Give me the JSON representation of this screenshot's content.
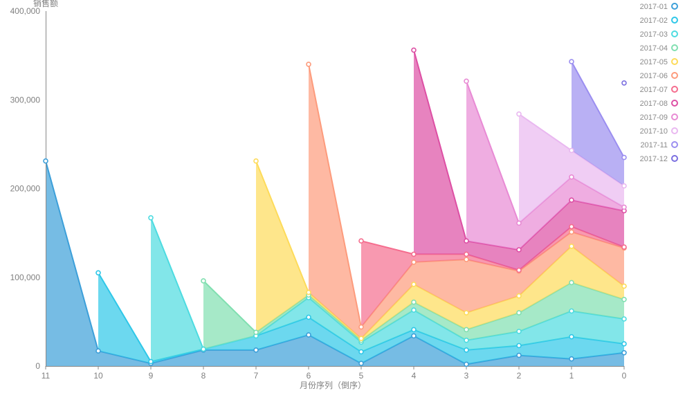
{
  "chart_data": {
    "type": "area",
    "stacked": true,
    "ylabel": "销售额",
    "xlabel": "月份序列（倒序）",
    "ylim": [
      0,
      400000
    ],
    "yticks": [
      "0",
      "100,000",
      "200,000",
      "300,000",
      "400,000"
    ],
    "yticks_values": [
      0,
      100000,
      200000,
      300000,
      400000
    ],
    "categories": [
      "11",
      "10",
      "9",
      "8",
      "7",
      "6",
      "5",
      "4",
      "3",
      "2",
      "1",
      "0"
    ],
    "grid": false,
    "legend_position": "right",
    "series": [
      {
        "name": "2017-01",
        "color": "#3c9fd9",
        "values": [
          231000,
          17000,
          3000,
          18000,
          18000,
          35000,
          3000,
          34000,
          2000,
          12000,
          8000,
          15000
        ]
      },
      {
        "name": "2017-02",
        "color": "#2ec7e8",
        "values": [
          null,
          88000,
          2000,
          1000,
          16000,
          20000,
          13000,
          7000,
          16000,
          11000,
          25000,
          10000
        ]
      },
      {
        "name": "2017-03",
        "color": "#4ddbe0",
        "values": [
          null,
          null,
          162000,
          0,
          0,
          22000,
          11000,
          22000,
          11000,
          16000,
          29000,
          28000
        ]
      },
      {
        "name": "2017-04",
        "color": "#80dfb0",
        "values": [
          null,
          null,
          null,
          77000,
          4000,
          3000,
          2000,
          9000,
          12000,
          21000,
          32000,
          22000
        ]
      },
      {
        "name": "2017-05",
        "color": "#fddb5a",
        "values": [
          null,
          null,
          null,
          null,
          193000,
          3000,
          2000,
          20000,
          19000,
          19000,
          41000,
          15000
        ]
      },
      {
        "name": "2017-06",
        "color": "#fd9b7c",
        "values": [
          null,
          null,
          null,
          null,
          null,
          257000,
          13000,
          25000,
          60000,
          28000,
          16000,
          43000
        ]
      },
      {
        "name": "2017-07",
        "color": "#f56d8e",
        "values": [
          null,
          null,
          null,
          null,
          null,
          null,
          97000,
          9000,
          6000,
          1000,
          6000,
          1000
        ]
      },
      {
        "name": "2017-08",
        "color": "#dd4fa4",
        "values": [
          null,
          null,
          null,
          null,
          null,
          null,
          null,
          230000,
          15000,
          23000,
          30000,
          41000
        ]
      },
      {
        "name": "2017-09",
        "color": "#e88ad4",
        "values": [
          null,
          null,
          null,
          null,
          null,
          null,
          null,
          null,
          180000,
          30000,
          26000,
          4000
        ]
      },
      {
        "name": "2017-10",
        "color": "#e9b8f0",
        "values": [
          null,
          null,
          null,
          null,
          null,
          null,
          null,
          null,
          null,
          123000,
          30000,
          24000
        ]
      },
      {
        "name": "2017-11",
        "color": "#9b8ef0",
        "values": [
          null,
          null,
          null,
          null,
          null,
          null,
          null,
          null,
          null,
          null,
          100000,
          32000
        ]
      },
      {
        "name": "2017-12",
        "color": "#7b6fe0",
        "values": [
          null,
          null,
          null,
          null,
          null,
          null,
          null,
          null,
          null,
          null,
          null,
          84000
        ]
      }
    ]
  }
}
